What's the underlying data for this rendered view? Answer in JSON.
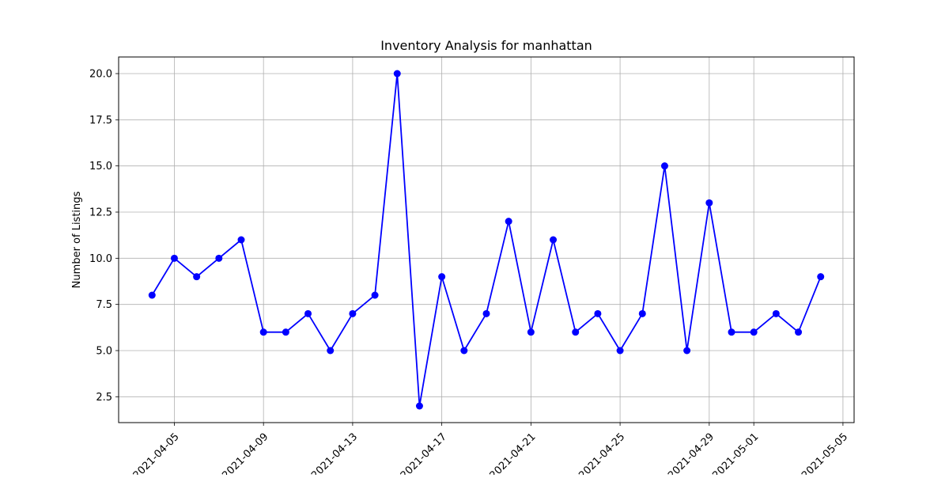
{
  "chart_data": {
    "type": "line",
    "title": "Inventory Analysis for manhattan",
    "xlabel": "",
    "ylabel": "Number of Listings",
    "x": [
      "2021-04-04",
      "2021-04-05",
      "2021-04-06",
      "2021-04-07",
      "2021-04-08",
      "2021-04-09",
      "2021-04-10",
      "2021-04-11",
      "2021-04-12",
      "2021-04-13",
      "2021-04-14",
      "2021-04-15",
      "2021-04-16",
      "2021-04-17",
      "2021-04-18",
      "2021-04-19",
      "2021-04-20",
      "2021-04-21",
      "2021-04-22",
      "2021-04-23",
      "2021-04-24",
      "2021-04-25",
      "2021-04-26",
      "2021-04-27",
      "2021-04-28",
      "2021-04-29",
      "2021-04-30",
      "2021-05-01",
      "2021-05-02",
      "2021-05-03",
      "2021-05-04"
    ],
    "series": [
      {
        "values": [
          8,
          10,
          9,
          10,
          11,
          6,
          6,
          7,
          5,
          7,
          8,
          20,
          2,
          9,
          5,
          7,
          12,
          6,
          11,
          6,
          7,
          5,
          7,
          15,
          5,
          13,
          6,
          6,
          7,
          6,
          9
        ],
        "color": "#0000ff",
        "marker": "circle"
      }
    ],
    "xlim": [
      "2021-04-02 12:00",
      "2021-05-05 12:00"
    ],
    "ylim": [
      1.1,
      20.9
    ],
    "xticks": [
      "2021-04-05",
      "2021-04-09",
      "2021-04-13",
      "2021-04-17",
      "2021-04-21",
      "2021-04-25",
      "2021-04-29",
      "2021-05-01",
      "2021-05-05"
    ],
    "yticks": [
      "2.5",
      "5.0",
      "7.5",
      "10.0",
      "12.5",
      "15.0",
      "17.5",
      "20.0"
    ],
    "grid": true,
    "legend": "none"
  }
}
